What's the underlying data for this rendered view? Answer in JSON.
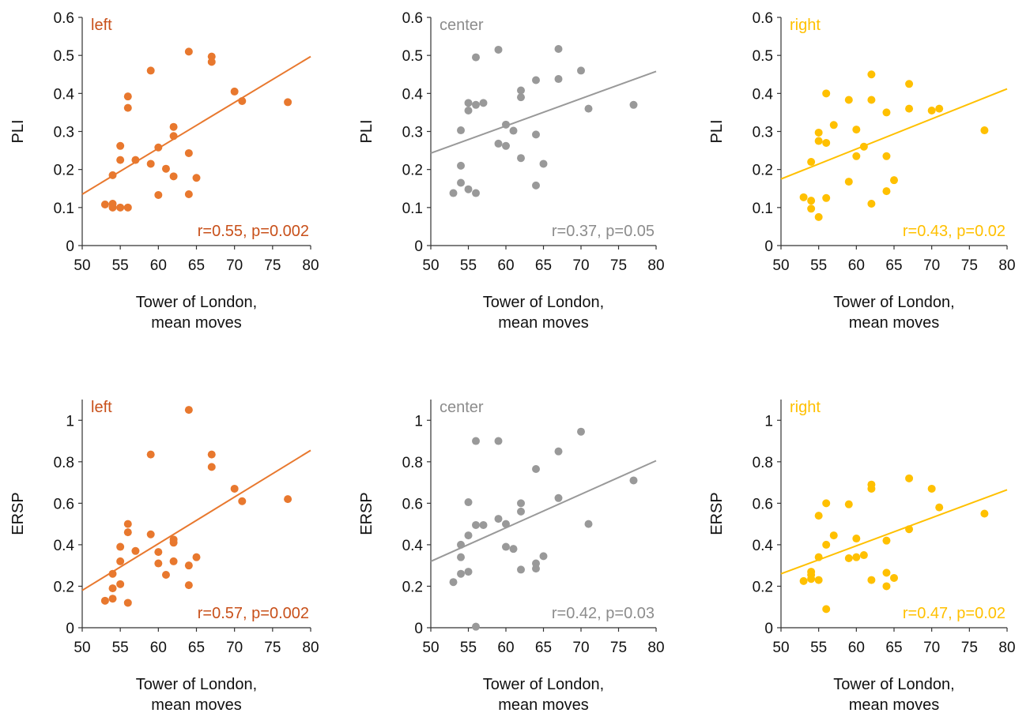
{
  "chart_data": [
    {
      "type": "scatter",
      "label": "left",
      "ylabel": "PLI",
      "xlabel": [
        "Tower of London,",
        "mean moves"
      ],
      "xlim": [
        50,
        80
      ],
      "ylim": [
        0,
        0.6
      ],
      "xticks": [
        "50",
        "55",
        "60",
        "65",
        "70",
        "75",
        "80"
      ],
      "yticks": [
        "0",
        "0.1",
        "0.2",
        "0.3",
        "0.4",
        "0.5",
        "0.6"
      ],
      "stat": "r=0.55, p=0.002",
      "color": "#E8782E",
      "stat_color": "#C8501A",
      "fit": [
        [
          50,
          0.135
        ],
        [
          80,
          0.497
        ]
      ],
      "points": [
        [
          53,
          0.108
        ],
        [
          54,
          0.1
        ],
        [
          54,
          0.11
        ],
        [
          54,
          0.185
        ],
        [
          55,
          0.1
        ],
        [
          55,
          0.225
        ],
        [
          55,
          0.262
        ],
        [
          56,
          0.1
        ],
        [
          56,
          0.362
        ],
        [
          56,
          0.392
        ],
        [
          57,
          0.225
        ],
        [
          59,
          0.215
        ],
        [
          59,
          0.46
        ],
        [
          60,
          0.133
        ],
        [
          60,
          0.258
        ],
        [
          61,
          0.202
        ],
        [
          62,
          0.182
        ],
        [
          62,
          0.288
        ],
        [
          62,
          0.312
        ],
        [
          64,
          0.135
        ],
        [
          64,
          0.243
        ],
        [
          64,
          0.51
        ],
        [
          65,
          0.178
        ],
        [
          67,
          0.483
        ],
        [
          67,
          0.497
        ],
        [
          70,
          0.405
        ],
        [
          71,
          0.38
        ],
        [
          77,
          0.377
        ]
      ]
    },
    {
      "type": "scatter",
      "label": "center",
      "ylabel": "PLI",
      "xlabel": [
        "Tower of London,",
        "mean moves"
      ],
      "xlim": [
        50,
        80
      ],
      "ylim": [
        0,
        0.6
      ],
      "xticks": [
        "50",
        "55",
        "60",
        "65",
        "70",
        "75",
        "80"
      ],
      "yticks": [
        "0",
        "0.1",
        "0.2",
        "0.3",
        "0.4",
        "0.5",
        "0.6"
      ],
      "stat": "r=0.37, p=0.05",
      "color": "#999999",
      "stat_color": "#8C8C8C",
      "fit": [
        [
          50,
          0.243
        ],
        [
          80,
          0.458
        ]
      ],
      "points": [
        [
          53,
          0.138
        ],
        [
          54,
          0.165
        ],
        [
          54,
          0.21
        ],
        [
          54,
          0.303
        ],
        [
          55,
          0.148
        ],
        [
          55,
          0.355
        ],
        [
          55,
          0.375
        ],
        [
          56,
          0.138
        ],
        [
          56,
          0.37
        ],
        [
          56,
          0.495
        ],
        [
          57,
          0.375
        ],
        [
          59,
          0.268
        ],
        [
          59,
          0.515
        ],
        [
          60,
          0.262
        ],
        [
          60,
          0.318
        ],
        [
          61,
          0.302
        ],
        [
          62,
          0.23
        ],
        [
          62,
          0.39
        ],
        [
          62,
          0.408
        ],
        [
          64,
          0.158
        ],
        [
          64,
          0.292
        ],
        [
          64,
          0.435
        ],
        [
          65,
          0.215
        ],
        [
          67,
          0.438
        ],
        [
          67,
          0.517
        ],
        [
          70,
          0.46
        ],
        [
          71,
          0.36
        ],
        [
          77,
          0.37
        ]
      ]
    },
    {
      "type": "scatter",
      "label": "right",
      "ylabel": "PLI",
      "xlabel": [
        "Tower of London,",
        "mean moves"
      ],
      "xlim": [
        50,
        80
      ],
      "ylim": [
        0,
        0.6
      ],
      "xticks": [
        "50",
        "55",
        "60",
        "65",
        "70",
        "75",
        "80"
      ],
      "yticks": [
        "0",
        "0.1",
        "0.2",
        "0.3",
        "0.4",
        "0.5",
        "0.6"
      ],
      "stat": "r=0.43, p=0.02",
      "color": "#FFC000",
      "stat_color": "#FFC000",
      "fit": [
        [
          50,
          0.175
        ],
        [
          80,
          0.412
        ]
      ],
      "points": [
        [
          53,
          0.127
        ],
        [
          54,
          0.097
        ],
        [
          54,
          0.118
        ],
        [
          54,
          0.22
        ],
        [
          55,
          0.075
        ],
        [
          55,
          0.275
        ],
        [
          55,
          0.297
        ],
        [
          56,
          0.125
        ],
        [
          56,
          0.27
        ],
        [
          56,
          0.4
        ],
        [
          57,
          0.317
        ],
        [
          59,
          0.168
        ],
        [
          59,
          0.383
        ],
        [
          60,
          0.235
        ],
        [
          60,
          0.305
        ],
        [
          61,
          0.26
        ],
        [
          62,
          0.11
        ],
        [
          62,
          0.383
        ],
        [
          62,
          0.45
        ],
        [
          64,
          0.143
        ],
        [
          64,
          0.235
        ],
        [
          64,
          0.35
        ],
        [
          65,
          0.172
        ],
        [
          67,
          0.36
        ],
        [
          67,
          0.425
        ],
        [
          70,
          0.355
        ],
        [
          71,
          0.36
        ],
        [
          77,
          0.303
        ]
      ]
    },
    {
      "type": "scatter",
      "label": "left",
      "ylabel": "ERSP",
      "xlabel": [
        "Tower of London,",
        "mean moves"
      ],
      "xlim": [
        50,
        80
      ],
      "ylim": [
        0,
        1.1
      ],
      "xticks": [
        "50",
        "55",
        "60",
        "65",
        "70",
        "75",
        "80"
      ],
      "yticks": [
        "0",
        "0.2",
        "0.4",
        "0.6",
        "0.8",
        "1"
      ],
      "stat": "r=0.57, p=0.002",
      "color": "#E8782E",
      "stat_color": "#C8501A",
      "fit": [
        [
          50,
          0.18
        ],
        [
          80,
          0.855
        ]
      ],
      "points": [
        [
          53,
          0.13
        ],
        [
          54,
          0.14
        ],
        [
          54,
          0.19
        ],
        [
          54,
          0.26
        ],
        [
          55,
          0.21
        ],
        [
          55,
          0.32
        ],
        [
          55,
          0.39
        ],
        [
          56,
          0.12
        ],
        [
          56,
          0.46
        ],
        [
          56,
          0.5
        ],
        [
          57,
          0.37
        ],
        [
          59,
          0.45
        ],
        [
          59,
          0.835
        ],
        [
          60,
          0.31
        ],
        [
          60,
          0.365
        ],
        [
          61,
          0.255
        ],
        [
          62,
          0.32
        ],
        [
          62,
          0.41
        ],
        [
          62,
          0.425
        ],
        [
          64,
          0.205
        ],
        [
          64,
          0.3
        ],
        [
          64,
          1.05
        ],
        [
          65,
          0.34
        ],
        [
          67,
          0.775
        ],
        [
          67,
          0.835
        ],
        [
          70,
          0.67
        ],
        [
          71,
          0.61
        ],
        [
          77,
          0.62
        ]
      ]
    },
    {
      "type": "scatter",
      "label": "center",
      "ylabel": "ERSP",
      "xlabel": [
        "Tower of London,",
        "mean moves"
      ],
      "xlim": [
        50,
        80
      ],
      "ylim": [
        0,
        1.1
      ],
      "xticks": [
        "50",
        "55",
        "60",
        "65",
        "70",
        "75",
        "80"
      ],
      "yticks": [
        "0",
        "0.2",
        "0.4",
        "0.6",
        "0.8",
        "1"
      ],
      "stat": "r=0.42, p=0.03",
      "color": "#999999",
      "stat_color": "#8C8C8C",
      "fit": [
        [
          50,
          0.32
        ],
        [
          80,
          0.805
        ]
      ],
      "points": [
        [
          53,
          0.22
        ],
        [
          54,
          0.26
        ],
        [
          54,
          0.34
        ],
        [
          54,
          0.4
        ],
        [
          55,
          0.27
        ],
        [
          55,
          0.445
        ],
        [
          55,
          0.605
        ],
        [
          56,
          0.005
        ],
        [
          56,
          0.495
        ],
        [
          56,
          0.9
        ],
        [
          57,
          0.495
        ],
        [
          59,
          0.525
        ],
        [
          59,
          0.9
        ],
        [
          60,
          0.39
        ],
        [
          60,
          0.5
        ],
        [
          61,
          0.38
        ],
        [
          62,
          0.28
        ],
        [
          62,
          0.56
        ],
        [
          62,
          0.6
        ],
        [
          64,
          0.285
        ],
        [
          64,
          0.31
        ],
        [
          64,
          0.765
        ],
        [
          65,
          0.345
        ],
        [
          67,
          0.625
        ],
        [
          67,
          0.85
        ],
        [
          70,
          0.945
        ],
        [
          71,
          0.5
        ],
        [
          77,
          0.71
        ]
      ]
    },
    {
      "type": "scatter",
      "label": "right",
      "ylabel": "ERSP",
      "xlabel": [
        "Tower of London,",
        "mean moves"
      ],
      "xlim": [
        50,
        80
      ],
      "ylim": [
        0,
        1.1
      ],
      "xticks": [
        "50",
        "55",
        "60",
        "65",
        "70",
        "75",
        "80"
      ],
      "yticks": [
        "0",
        "0.2",
        "0.4",
        "0.6",
        "0.8",
        "1"
      ],
      "stat": "r=0.47, p=0.02",
      "color": "#FFC000",
      "stat_color": "#FFC000",
      "fit": [
        [
          50,
          0.26
        ],
        [
          80,
          0.665
        ]
      ],
      "points": [
        [
          53,
          0.225
        ],
        [
          54,
          0.235
        ],
        [
          54,
          0.255
        ],
        [
          54,
          0.27
        ],
        [
          55,
          0.23
        ],
        [
          55,
          0.34
        ],
        [
          55,
          0.54
        ],
        [
          56,
          0.09
        ],
        [
          56,
          0.4
        ],
        [
          56,
          0.6
        ],
        [
          57,
          0.445
        ],
        [
          59,
          0.335
        ],
        [
          59,
          0.595
        ],
        [
          60,
          0.34
        ],
        [
          60,
          0.43
        ],
        [
          61,
          0.35
        ],
        [
          62,
          0.23
        ],
        [
          62,
          0.67
        ],
        [
          62,
          0.69
        ],
        [
          64,
          0.2
        ],
        [
          64,
          0.265
        ],
        [
          64,
          0.42
        ],
        [
          65,
          0.24
        ],
        [
          67,
          0.475
        ],
        [
          67,
          0.72
        ],
        [
          70,
          0.67
        ],
        [
          71,
          0.58
        ],
        [
          77,
          0.55
        ]
      ]
    }
  ]
}
